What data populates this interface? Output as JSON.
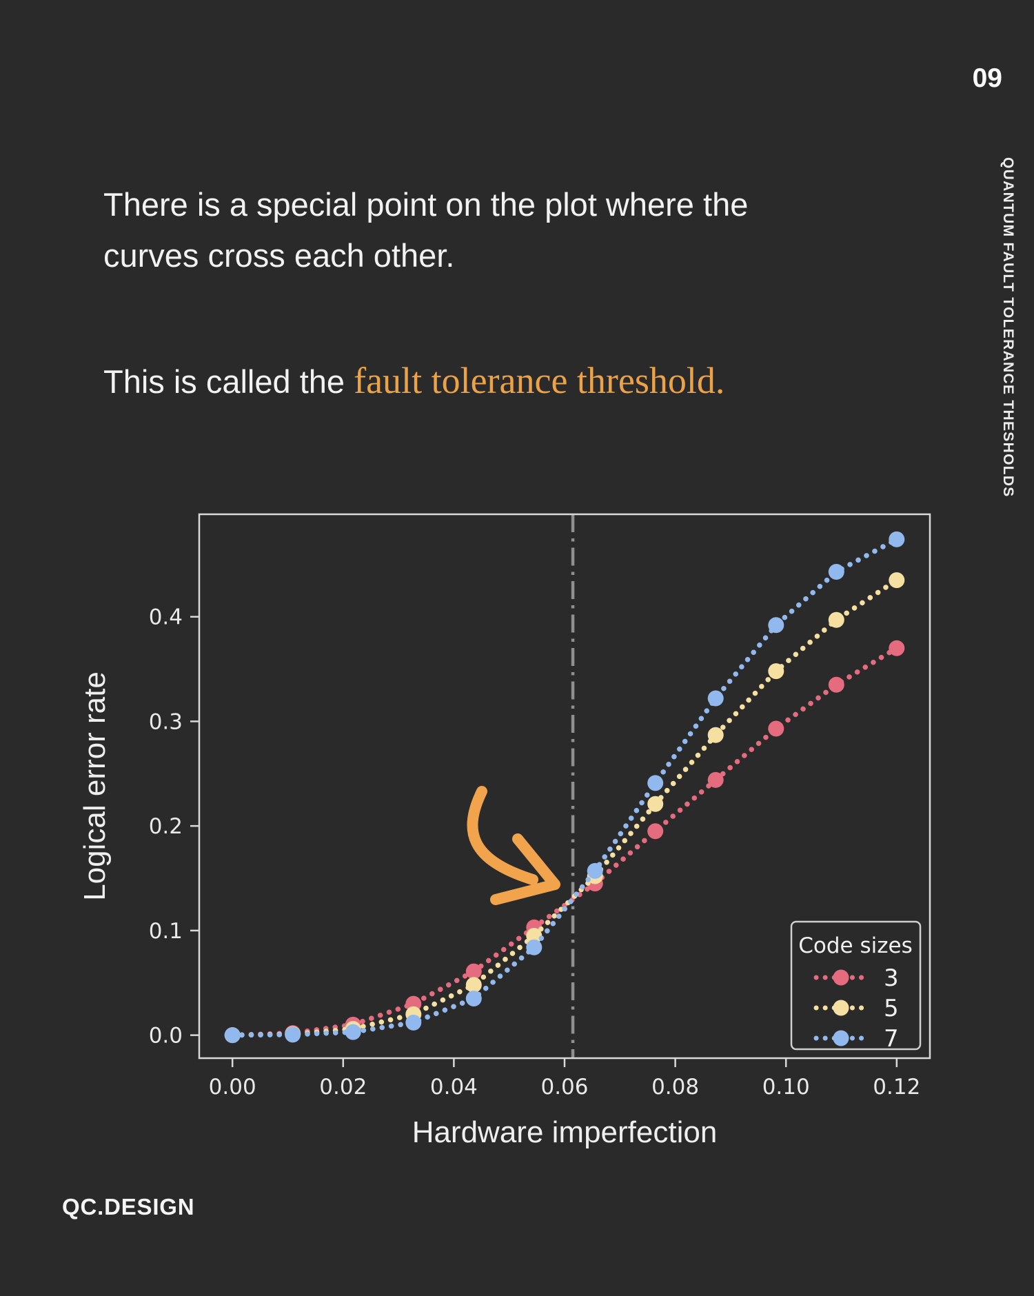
{
  "page": {
    "number": "09",
    "side_title": "QUANTUM FAULT TOLERANCE THESHOLDS",
    "paragraph1_line1": "There is a special point on the plot where the",
    "paragraph1_line2": "curves cross each other.",
    "paragraph2_prefix": "This is called the ",
    "paragraph2_highlight": "fault tolerance threshold.",
    "footer": "QC.DESIGN",
    "colors": {
      "background": "#2a2a2b",
      "text": "#f2f2f2",
      "highlight": "#eda345",
      "arrow": "#f2a44c"
    }
  },
  "chart_data": {
    "type": "line",
    "title": "",
    "xlabel": "Hardware imperfection",
    "ylabel": "Logical error rate",
    "x": [
      0,
      0.0109,
      0.0218,
      0.0327,
      0.0436,
      0.0545,
      0.0655,
      0.0764,
      0.0873,
      0.0982,
      0.1091,
      0.12
    ],
    "series": [
      {
        "name": "3",
        "color": "#e56b7e",
        "values": [
          0.0,
          0.002,
          0.01,
          0.03,
          0.061,
          0.103,
          0.145,
          0.195,
          0.244,
          0.293,
          0.335,
          0.37
        ]
      },
      {
        "name": "5",
        "color": "#f6e0a1",
        "values": [
          0.0,
          0.001,
          0.006,
          0.02,
          0.048,
          0.095,
          0.152,
          0.221,
          0.287,
          0.348,
          0.397,
          0.435
        ]
      },
      {
        "name": "7",
        "color": "#92b9ee",
        "values": [
          0.0,
          0.0005,
          0.003,
          0.012,
          0.035,
          0.084,
          0.157,
          0.241,
          0.322,
          0.392,
          0.443,
          0.474
        ]
      }
    ],
    "legend": {
      "title": "Code sizes",
      "position": "lower right"
    },
    "threshold_line": {
      "x": 0.0615,
      "style": "dashdot",
      "color": "#8f8f8f"
    },
    "xlim": [
      -0.006,
      0.126
    ],
    "ylim": [
      -0.022,
      0.498
    ],
    "xticks": [
      {
        "v": 0.0,
        "label": "0.00"
      },
      {
        "v": 0.02,
        "label": "0.02"
      },
      {
        "v": 0.04,
        "label": "0.04"
      },
      {
        "v": 0.06,
        "label": "0.06"
      },
      {
        "v": 0.08,
        "label": "0.08"
      },
      {
        "v": 0.1,
        "label": "0.10"
      },
      {
        "v": 0.12,
        "label": "0.12"
      }
    ],
    "yticks": [
      {
        "v": 0.0,
        "label": "0.0"
      },
      {
        "v": 0.1,
        "label": "0.1"
      },
      {
        "v": 0.2,
        "label": "0.2"
      },
      {
        "v": 0.3,
        "label": "0.3"
      },
      {
        "v": 0.4,
        "label": "0.4"
      }
    ],
    "grid": false,
    "colors": {
      "spine": "#d9d9d9",
      "tick_text": "#e9e9e9",
      "axis_label_text": "#efefef",
      "legend_border": "#cfcfcf"
    }
  }
}
